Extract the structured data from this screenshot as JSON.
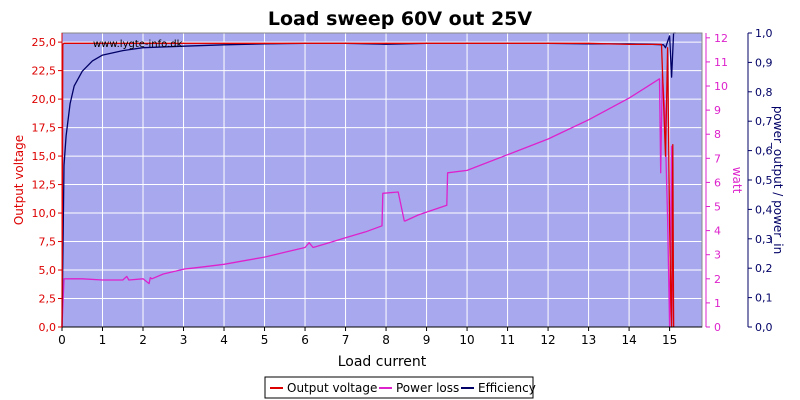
{
  "chart_data": {
    "type": "line",
    "title": "Load sweep 60V out 25V",
    "watermark": "www.lygte-info.dk",
    "xlabel": "Load current",
    "ylabel_left": "Output voltage",
    "ylabel_right1": "watt",
    "ylabel_right2": "power_output / power_in",
    "xlim": [
      0,
      15.8
    ],
    "ylim_left": [
      0,
      25.8
    ],
    "ylim_right1": [
      0,
      12.2
    ],
    "ylim_right2": [
      0,
      1.0
    ],
    "x_ticks": [
      "0",
      "1",
      "2",
      "3",
      "4",
      "5",
      "6",
      "7",
      "8",
      "9",
      "10",
      "11",
      "12",
      "13",
      "14",
      "15"
    ],
    "y_ticks_left": [
      "0,0",
      "2,5",
      "5,0",
      "7,5",
      "10,0",
      "12,5",
      "15,0",
      "17,5",
      "20,0",
      "22,5",
      "25,0"
    ],
    "y_ticks_right1": [
      "0",
      "1",
      "2",
      "3",
      "4",
      "5",
      "6",
      "7",
      "8",
      "9",
      "10",
      "11",
      "12"
    ],
    "y_ticks_right2": [
      "0,0",
      "0,1",
      "0,2",
      "0,3",
      "0,4",
      "0,5",
      "0,6",
      "0,7",
      "0,8",
      "0,9",
      "1,0"
    ],
    "colors": {
      "plot_bg": "#a8a8ee",
      "grid": "#ffffff",
      "output_voltage": "#dd0000",
      "power_loss": "#dd22cc",
      "efficiency": "#000066",
      "axis_left": "#dd0000",
      "axis_right1": "#dd22cc",
      "axis_right2": "#000066"
    },
    "legend_position": "bottom-center",
    "series": [
      {
        "name": "Output voltage",
        "axis": "left",
        "x": [
          0,
          0.02,
          0.05,
          1,
          2,
          3,
          4,
          5,
          6,
          7,
          8,
          9,
          10,
          11,
          12,
          13,
          14,
          14.8,
          14.9,
          14.95,
          15.0,
          15.03,
          15.05,
          15.08,
          15.1
        ],
        "y": [
          0,
          24.8,
          24.9,
          24.9,
          24.9,
          24.9,
          24.9,
          24.9,
          24.9,
          24.9,
          24.9,
          24.9,
          24.9,
          24.9,
          24.9,
          24.9,
          24.8,
          24.8,
          15,
          24.5,
          9,
          2.5,
          0,
          16,
          0
        ]
      },
      {
        "name": "Power loss",
        "axis": "right1",
        "x": [
          0,
          0.05,
          0.5,
          1,
          1.5,
          1.6,
          1.65,
          2,
          2.15,
          2.18,
          2.22,
          2.5,
          3,
          3.5,
          4,
          4.5,
          5,
          5.5,
          6,
          6.1,
          6.2,
          6.5,
          7,
          7.5,
          7.9,
          7.92,
          8.3,
          8.45,
          8.47,
          8.8,
          9.5,
          9.52,
          10,
          11,
          12,
          13,
          14,
          14.75,
          14.78,
          14.82,
          14.88,
          14.95,
          15.0,
          15.05,
          15.1
        ],
        "y": [
          0,
          2.0,
          2.0,
          1.95,
          1.95,
          2.1,
          1.95,
          2.0,
          1.8,
          2.05,
          2.0,
          2.2,
          2.4,
          2.5,
          2.6,
          2.75,
          2.9,
          3.1,
          3.3,
          3.5,
          3.3,
          3.45,
          3.7,
          3.95,
          4.2,
          5.55,
          5.6,
          4.4,
          4.4,
          4.65,
          5.05,
          6.4,
          6.5,
          7.15,
          7.8,
          8.6,
          9.5,
          10.3,
          6.4,
          10.5,
          9.0,
          4.5,
          0,
          7.5,
          0
        ]
      },
      {
        "name": "Efficiency",
        "axis": "right2",
        "x": [
          0,
          0.05,
          0.1,
          0.2,
          0.3,
          0.5,
          0.75,
          1,
          1.5,
          2,
          3,
          4,
          5,
          6,
          7,
          8,
          9,
          10,
          11,
          12,
          13,
          14,
          14.5,
          14.85,
          14.9,
          15.0,
          15.05,
          15.1,
          15.15
        ],
        "y": [
          0,
          0.55,
          0.65,
          0.76,
          0.82,
          0.87,
          0.905,
          0.925,
          0.94,
          0.95,
          0.955,
          0.96,
          0.963,
          0.965,
          0.965,
          0.962,
          0.965,
          0.965,
          0.965,
          0.965,
          0.963,
          0.963,
          0.962,
          0.96,
          0.95,
          0.99,
          0.85,
          1.0,
          1.0
        ]
      }
    ]
  }
}
